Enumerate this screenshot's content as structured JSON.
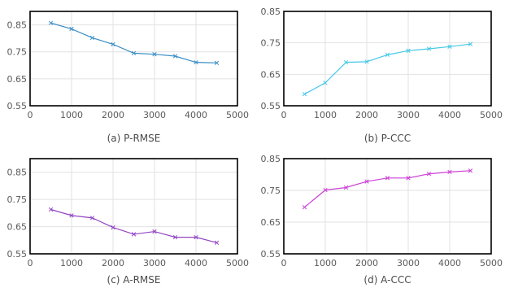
{
  "chart_data": [
    {
      "type": "line",
      "caption": "(a) P-RMSE",
      "x": [
        500,
        1000,
        1500,
        2000,
        2500,
        3000,
        3500,
        4000,
        4500
      ],
      "series": [
        {
          "values": [
            0.857,
            0.835,
            0.802,
            0.778,
            0.745,
            0.741,
            0.734,
            0.711,
            0.709
          ],
          "color": "#3a8fc7"
        }
      ],
      "xlim": [
        0,
        5000
      ],
      "ylim": [
        0.55,
        0.9
      ],
      "xticks": [
        "0",
        "1000",
        "2000",
        "3000",
        "4000",
        "5000"
      ],
      "yticks": [
        "0.55",
        "0.65",
        "0.75",
        "0.85"
      ],
      "grid": true
    },
    {
      "type": "line",
      "caption": "(b) P-CCC",
      "x": [
        500,
        1000,
        1500,
        2000,
        2500,
        3000,
        3500,
        4000,
        4500
      ],
      "series": [
        {
          "values": [
            0.587,
            0.623,
            0.688,
            0.69,
            0.712,
            0.725,
            0.731,
            0.738,
            0.746
          ],
          "color": "#45c8e6"
        }
      ],
      "xlim": [
        0,
        5000
      ],
      "ylim": [
        0.55,
        0.85
      ],
      "xticks": [
        "0",
        "1000",
        "2000",
        "3000",
        "4000",
        "5000"
      ],
      "yticks": [
        "0.55",
        "0.65",
        "0.75",
        "0.85"
      ],
      "grid": true
    },
    {
      "type": "line",
      "caption": "(c) A-RMSE",
      "x": [
        500,
        1000,
        1500,
        2000,
        2500,
        3000,
        3500,
        4000,
        4500
      ],
      "series": [
        {
          "values": [
            0.713,
            0.691,
            0.682,
            0.647,
            0.622,
            0.632,
            0.611,
            0.611,
            0.591
          ],
          "color": "#9245c4"
        }
      ],
      "xlim": [
        0,
        5000
      ],
      "ylim": [
        0.55,
        0.9
      ],
      "xticks": [
        "0",
        "1000",
        "2000",
        "3000",
        "4000",
        "5000"
      ],
      "yticks": [
        "0.55",
        "0.65",
        "0.75",
        "0.85"
      ],
      "grid": true
    },
    {
      "type": "line",
      "caption": "(d) A-CCC",
      "x": [
        500,
        1000,
        1500,
        2000,
        2500,
        3000,
        3500,
        4000,
        4500
      ],
      "series": [
        {
          "values": [
            0.697,
            0.751,
            0.759,
            0.778,
            0.789,
            0.789,
            0.802,
            0.808,
            0.812
          ],
          "color": "#cc3fd6"
        }
      ],
      "xlim": [
        0,
        5000
      ],
      "ylim": [
        0.55,
        0.85
      ],
      "xticks": [
        "0",
        "1000",
        "2000",
        "3000",
        "4000",
        "5000"
      ],
      "yticks": [
        "0.55",
        "0.65",
        "0.75",
        "0.85"
      ],
      "grid": true
    }
  ]
}
